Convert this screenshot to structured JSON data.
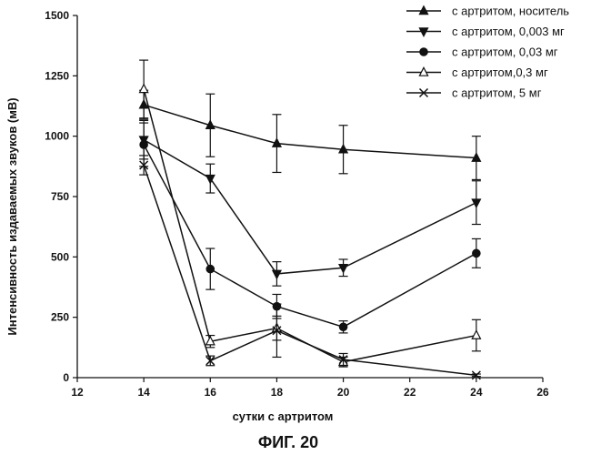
{
  "chart_data": {
    "type": "line",
    "title": "",
    "xlabel": "сутки с артритом",
    "ylabel": "Интенсивность издаваемых звуков (мВ)",
    "xlim": [
      12,
      26
    ],
    "ylim": [
      0,
      1500
    ],
    "xticks": [
      "12",
      "14",
      "16",
      "18",
      "20",
      "22",
      "24",
      "26"
    ],
    "yticks": [
      "0",
      "250",
      "500",
      "750",
      "1000",
      "1250",
      "1500"
    ],
    "x": [
      14,
      16,
      18,
      20,
      24
    ],
    "legend_position": "top-right",
    "series": [
      {
        "name": "с артритом, носитель",
        "marker": "triangle-up-filled",
        "values": [
          1130,
          1045,
          970,
          945,
          910
        ],
        "errors": [
          60,
          130,
          120,
          100,
          90
        ]
      },
      {
        "name": "с артритом, 0,003 мг",
        "marker": "triangle-down-filled",
        "values": [
          985,
          825,
          430,
          455,
          725
        ],
        "errors": [
          80,
          60,
          50,
          35,
          90
        ]
      },
      {
        "name": "с артритом, 0,03 мг",
        "marker": "circle-filled",
        "values": [
          965,
          450,
          295,
          210,
          515
        ],
        "errors": [
          90,
          85,
          50,
          25,
          60
        ]
      },
      {
        "name": "с артритом,0,3 мг",
        "marker": "triangle-up-open",
        "values": [
          1195,
          150,
          205,
          65,
          175
        ],
        "errors": [
          120,
          25,
          50,
          20,
          65
        ]
      },
      {
        "name": "с артритом, 5 мг",
        "marker": "x",
        "values": [
          880,
          70,
          195,
          75,
          10
        ],
        "errors": [
          40,
          20,
          110,
          25,
          5
        ]
      }
    ]
  },
  "figure": {
    "caption": "ФИГ. 20"
  }
}
